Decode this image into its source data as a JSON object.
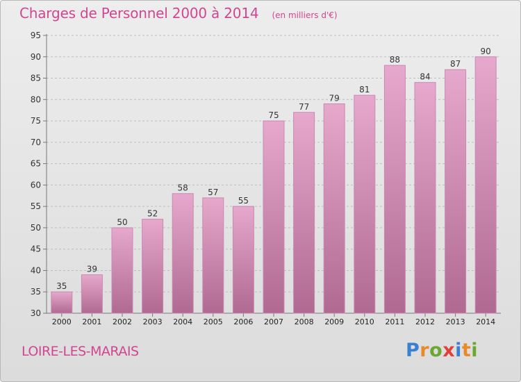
{
  "chart_data": {
    "type": "bar",
    "title": "Charges de Personnel 2000 à 2014",
    "subtitle": "(en milliers d'€)",
    "categories": [
      "2000",
      "2001",
      "2002",
      "2003",
      "2004",
      "2005",
      "2006",
      "2007",
      "2008",
      "2009",
      "2010",
      "2011",
      "2012",
      "2013",
      "2014"
    ],
    "values": [
      35,
      39,
      50,
      52,
      58,
      57,
      55,
      75,
      77,
      79,
      81,
      88,
      84,
      87,
      90
    ],
    "ylim": [
      30,
      95
    ],
    "yticks": [
      30,
      35,
      40,
      45,
      50,
      55,
      60,
      65,
      70,
      75,
      80,
      85,
      90,
      95
    ],
    "grid": true,
    "colors": {
      "bar_top": "#e6a8cc",
      "bar_bottom": "#b06a92",
      "bar_edge": "#c98aae",
      "grid": "#bdbdbd",
      "accent": "#d04690"
    }
  },
  "footer": {
    "city": "LOIRE-LES-MARAIS",
    "brand": [
      "P",
      "r",
      "o",
      "x",
      "i",
      "t",
      "i"
    ],
    "brand_colors": [
      "#3a7fd0",
      "#e8892a",
      "#6aa832",
      "#e0403a",
      "#3a7fd0",
      "#e8892a",
      "#6aa832"
    ]
  }
}
